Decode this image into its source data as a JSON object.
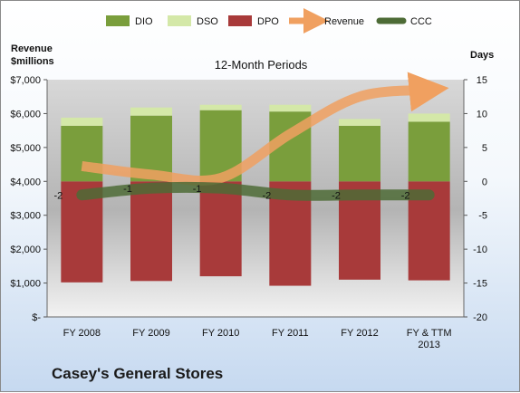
{
  "chart_data": {
    "type": "bar",
    "subtitle": "12-Month Periods",
    "company": "Casey's General Stores",
    "left_axis_title": [
      "Revenue",
      "$millions"
    ],
    "right_axis_title": "Days",
    "categories": [
      [
        "FY 2008"
      ],
      [
        "FY 2009"
      ],
      [
        "FY 2010"
      ],
      [
        "FY 2011"
      ],
      [
        "FY 2012"
      ],
      [
        "FY & TTM",
        "2013"
      ]
    ],
    "left_ticks": [
      "$-",
      "$1,000",
      "$2,000",
      "$3,000",
      "$4,000",
      "$5,000",
      "$6,000",
      "$7,000"
    ],
    "left_ylim": [
      0,
      7000
    ],
    "right_ylim": [
      -20,
      15
    ],
    "right_ticks": [
      -20,
      -15,
      -10,
      -5,
      0,
      5,
      10,
      15
    ],
    "legend": [
      "DIO",
      "DSO",
      "DPO",
      "Revenue",
      "CCC"
    ],
    "colors": {
      "DIO": "#7a9e3c",
      "DSO": "#d4e8a8",
      "DPO": "#a83a3a",
      "Revenue": "#f0a060",
      "CCC": "#4d6b36"
    },
    "series": [
      {
        "name": "DIO",
        "axis": "right",
        "values": [
          8.2,
          9.7,
          10.5,
          10.3,
          8.2,
          8.8
        ]
      },
      {
        "name": "DSO",
        "axis": "right",
        "values": [
          1.2,
          1.2,
          0.8,
          1.0,
          1.0,
          1.2
        ]
      },
      {
        "name": "DPO",
        "axis": "right",
        "values": [
          -14.9,
          -14.7,
          -14.0,
          -15.4,
          -14.5,
          -14.6
        ]
      },
      {
        "name": "Revenue",
        "axis": "left",
        "values": [
          4450,
          4200,
          4100,
          5400,
          6500,
          6700
        ]
      },
      {
        "name": "CCC",
        "axis": "right",
        "values": [
          -2,
          -1,
          -1,
          -2,
          -2,
          -2
        ],
        "labels": [
          "-2",
          "-1",
          "-1",
          "-2",
          "-2",
          "-2"
        ]
      }
    ]
  }
}
